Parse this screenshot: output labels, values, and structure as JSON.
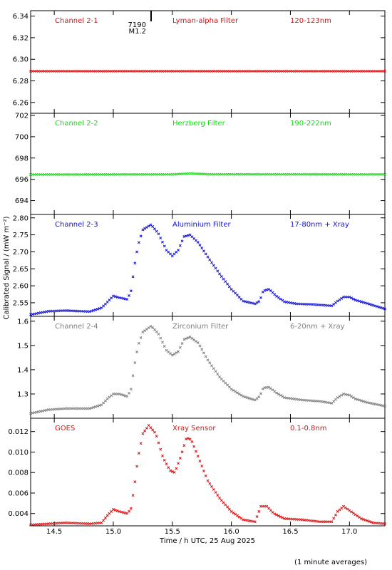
{
  "figure": {
    "ylabel": "Calibrated Signal / (mW m⁻²)",
    "xlabel": "Time / h UTC, 25 Aug 2025",
    "footnote": "(1 minute averages)"
  },
  "chart_data": [
    {
      "type": "scatter",
      "channel": "Channel 2-1",
      "filter": "Lyman-alpha Filter",
      "band": "120-123nm",
      "color": "#dd1111",
      "xlim": [
        14.3,
        17.3
      ],
      "ylim": [
        6.25,
        6.345
      ],
      "yticks": [
        6.26,
        6.28,
        6.3,
        6.32,
        6.34
      ],
      "ytick_labels": [
        "6.26",
        "6.28",
        "6.30",
        "6.32",
        "6.34"
      ],
      "annotation": {
        "line1": "7190",
        "line2": "M1.2",
        "x": 15.32
      },
      "points": [
        [
          14.3,
          6.289
        ],
        [
          17.3,
          6.289
        ]
      ]
    },
    {
      "type": "scatter",
      "channel": "Channel 2-2",
      "filter": "Herzberg Filter",
      "band": "190-222nm",
      "color": "#11dd11",
      "xlim": [
        14.3,
        17.3
      ],
      "ylim": [
        692.7,
        702.2
      ],
      "yticks": [
        694,
        696,
        698,
        700,
        702
      ],
      "ytick_labels": [
        "694",
        "696",
        "698",
        "700",
        "702"
      ],
      "points": [
        [
          14.3,
          696.45
        ],
        [
          15.5,
          696.46
        ],
        [
          15.65,
          696.55
        ],
        [
          15.8,
          696.47
        ],
        [
          17.3,
          696.46
        ]
      ]
    },
    {
      "type": "scatter",
      "channel": "Channel 2-3",
      "filter": "Aluminium Filter",
      "band": "17-80nm + Xray",
      "color": "#1111dd",
      "xlim": [
        14.3,
        17.3
      ],
      "ylim": [
        2.51,
        2.81
      ],
      "yticks": [
        2.55,
        2.6,
        2.65,
        2.7,
        2.75,
        2.8
      ],
      "ytick_labels": [
        "2.55",
        "2.60",
        "2.65",
        "2.70",
        "2.75",
        "2.80"
      ],
      "points": [
        [
          14.3,
          2.515
        ],
        [
          14.45,
          2.525
        ],
        [
          14.6,
          2.527
        ],
        [
          14.8,
          2.524
        ],
        [
          14.9,
          2.535
        ],
        [
          14.95,
          2.552
        ],
        [
          15.0,
          2.57
        ],
        [
          15.05,
          2.565
        ],
        [
          15.12,
          2.56
        ],
        [
          15.15,
          2.585
        ],
        [
          15.18,
          2.66
        ],
        [
          15.21,
          2.72
        ],
        [
          15.25,
          2.765
        ],
        [
          15.32,
          2.78
        ],
        [
          15.38,
          2.755
        ],
        [
          15.45,
          2.705
        ],
        [
          15.5,
          2.688
        ],
        [
          15.55,
          2.705
        ],
        [
          15.6,
          2.745
        ],
        [
          15.65,
          2.75
        ],
        [
          15.72,
          2.727
        ],
        [
          15.8,
          2.685
        ],
        [
          15.9,
          2.635
        ],
        [
          16.0,
          2.59
        ],
        [
          16.1,
          2.555
        ],
        [
          16.2,
          2.547
        ],
        [
          16.24,
          2.555
        ],
        [
          16.27,
          2.585
        ],
        [
          16.32,
          2.59
        ],
        [
          16.38,
          2.57
        ],
        [
          16.45,
          2.553
        ],
        [
          16.55,
          2.547
        ],
        [
          16.7,
          2.545
        ],
        [
          16.85,
          2.541
        ],
        [
          16.9,
          2.555
        ],
        [
          16.95,
          2.567
        ],
        [
          17.0,
          2.567
        ],
        [
          17.05,
          2.558
        ],
        [
          17.15,
          2.548
        ],
        [
          17.3,
          2.532
        ]
      ]
    },
    {
      "type": "scatter",
      "channel": "Channel 2-4",
      "filter": "Zirconium Filter",
      "band": "6-20nm + Xray",
      "color": "#808080",
      "xlim": [
        14.3,
        17.3
      ],
      "ylim": [
        1.2,
        1.62
      ],
      "yticks": [
        1.3,
        1.4,
        1.5,
        1.6
      ],
      "ytick_labels": [
        "1.3",
        "1.4",
        "1.5",
        "1.6"
      ],
      "points": [
        [
          14.3,
          1.22
        ],
        [
          14.45,
          1.235
        ],
        [
          14.6,
          1.24
        ],
        [
          14.8,
          1.24
        ],
        [
          14.9,
          1.255
        ],
        [
          14.95,
          1.28
        ],
        [
          15.0,
          1.3
        ],
        [
          15.05,
          1.3
        ],
        [
          15.12,
          1.29
        ],
        [
          15.15,
          1.32
        ],
        [
          15.18,
          1.42
        ],
        [
          15.21,
          1.5
        ],
        [
          15.25,
          1.555
        ],
        [
          15.32,
          1.58
        ],
        [
          15.38,
          1.55
        ],
        [
          15.45,
          1.48
        ],
        [
          15.5,
          1.46
        ],
        [
          15.55,
          1.475
        ],
        [
          15.6,
          1.525
        ],
        [
          15.65,
          1.535
        ],
        [
          15.72,
          1.51
        ],
        [
          15.8,
          1.44
        ],
        [
          15.9,
          1.37
        ],
        [
          16.0,
          1.32
        ],
        [
          16.1,
          1.29
        ],
        [
          16.2,
          1.275
        ],
        [
          16.24,
          1.29
        ],
        [
          16.27,
          1.325
        ],
        [
          16.32,
          1.328
        ],
        [
          16.38,
          1.305
        ],
        [
          16.45,
          1.285
        ],
        [
          16.6,
          1.275
        ],
        [
          16.75,
          1.27
        ],
        [
          16.85,
          1.262
        ],
        [
          16.9,
          1.285
        ],
        [
          16.95,
          1.3
        ],
        [
          17.0,
          1.295
        ],
        [
          17.05,
          1.28
        ],
        [
          17.15,
          1.265
        ],
        [
          17.3,
          1.25
        ]
      ]
    },
    {
      "type": "scatter",
      "channel": "GOES",
      "filter": "Xray Sensor",
      "band": "0.1-0.8nm",
      "color": "#dd1111",
      "xlim": [
        14.3,
        17.3
      ],
      "ylim": [
        0.0028,
        0.0133
      ],
      "yticks": [
        0.004,
        0.006,
        0.008,
        0.01,
        0.012
      ],
      "ytick_labels": [
        "0.004",
        "0.006",
        "0.008",
        "0.010",
        "0.012"
      ],
      "points": [
        [
          14.3,
          0.0029
        ],
        [
          14.45,
          0.003
        ],
        [
          14.6,
          0.0031
        ],
        [
          14.8,
          0.003
        ],
        [
          14.9,
          0.0031
        ],
        [
          14.95,
          0.0038
        ],
        [
          15.0,
          0.0044
        ],
        [
          15.05,
          0.0042
        ],
        [
          15.12,
          0.004
        ],
        [
          15.15,
          0.0045
        ],
        [
          15.18,
          0.0068
        ],
        [
          15.21,
          0.0095
        ],
        [
          15.25,
          0.0118
        ],
        [
          15.3,
          0.0126
        ],
        [
          15.36,
          0.0118
        ],
        [
          15.42,
          0.0095
        ],
        [
          15.48,
          0.0082
        ],
        [
          15.52,
          0.008
        ],
        [
          15.57,
          0.0095
        ],
        [
          15.62,
          0.0114
        ],
        [
          15.66,
          0.0112
        ],
        [
          15.72,
          0.0095
        ],
        [
          15.8,
          0.0072
        ],
        [
          15.9,
          0.0055
        ],
        [
          16.0,
          0.0042
        ],
        [
          16.1,
          0.0034
        ],
        [
          16.2,
          0.0032
        ],
        [
          16.25,
          0.0047
        ],
        [
          16.3,
          0.0047
        ],
        [
          16.36,
          0.004
        ],
        [
          16.45,
          0.0035
        ],
        [
          16.6,
          0.0034
        ],
        [
          16.75,
          0.0032
        ],
        [
          16.85,
          0.0032
        ],
        [
          16.9,
          0.0042
        ],
        [
          16.95,
          0.0047
        ],
        [
          17.0,
          0.0043
        ],
        [
          17.1,
          0.0035
        ],
        [
          17.2,
          0.0031
        ],
        [
          17.3,
          0.003
        ]
      ]
    }
  ],
  "xaxis": {
    "ticks": [
      14.5,
      15.0,
      15.5,
      16.0,
      16.5,
      17.0
    ],
    "tick_labels": [
      "14.5",
      "15.0",
      "15.5",
      "16.0",
      "16.5",
      "17.0"
    ]
  }
}
